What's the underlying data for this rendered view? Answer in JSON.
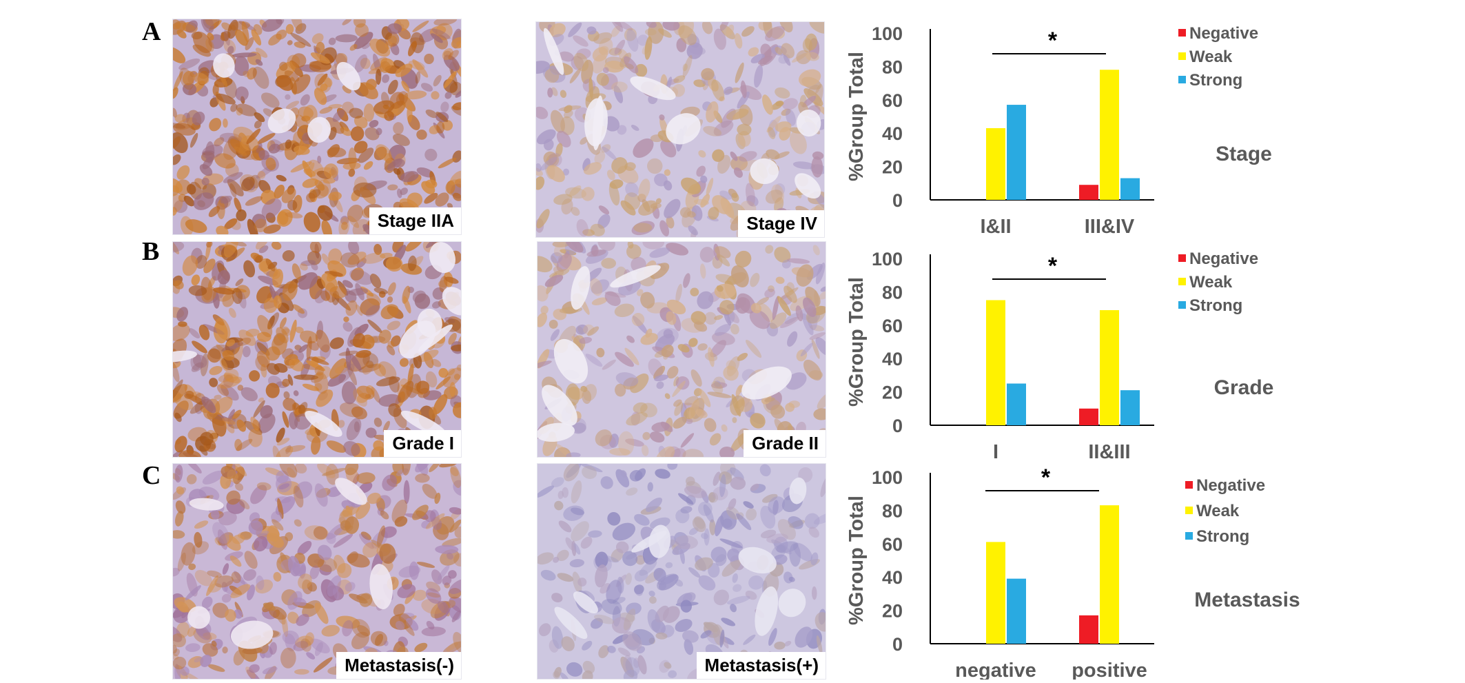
{
  "panels": [
    {
      "letter": "A",
      "images": [
        {
          "label": "Stage IIA",
          "stain": "strong"
        },
        {
          "label": "Stage IV",
          "stain": "weak"
        }
      ]
    },
    {
      "letter": "B",
      "images": [
        {
          "label": "Grade I",
          "stain": "strong"
        },
        {
          "label": "Grade II",
          "stain": "weak"
        }
      ]
    },
    {
      "letter": "C",
      "images": [
        {
          "label": "Metastasis(-)",
          "stain": "medium"
        },
        {
          "label": "Metastasis(+)",
          "stain": "faint"
        }
      ]
    }
  ],
  "colors": {
    "Negative": "#ee1c25",
    "Weak": "#fff200",
    "Strong": "#29aae1"
  },
  "chart_data": [
    {
      "type": "bar",
      "title": "Stage",
      "ylabel": "%Group Total",
      "ylim": [
        0,
        100
      ],
      "yticks": [
        0,
        20,
        40,
        60,
        80,
        100
      ],
      "categories": [
        "I&II",
        "III&IV"
      ],
      "series": [
        {
          "name": "Negative",
          "values": [
            0,
            9
          ]
        },
        {
          "name": "Weak",
          "values": [
            43,
            78
          ]
        },
        {
          "name": "Strong",
          "values": [
            57,
            13
          ]
        }
      ],
      "significance": {
        "pair": [
          0,
          1
        ],
        "label": "*"
      },
      "legend": "top-right"
    },
    {
      "type": "bar",
      "title": "Grade",
      "ylabel": "%Group Total",
      "ylim": [
        0,
        100
      ],
      "yticks": [
        0,
        20,
        40,
        60,
        80,
        100
      ],
      "categories": [
        "I",
        "II&III"
      ],
      "series": [
        {
          "name": "Negative",
          "values": [
            0,
            10
          ]
        },
        {
          "name": "Weak",
          "values": [
            75,
            69
          ]
        },
        {
          "name": "Strong",
          "values": [
            25,
            21
          ]
        }
      ],
      "significance": {
        "pair": [
          0,
          1
        ],
        "label": "*"
      },
      "legend": "top-right"
    },
    {
      "type": "bar",
      "title": "Metastasis",
      "ylabel": "%Group Total",
      "ylim": [
        0,
        100
      ],
      "yticks": [
        0,
        20,
        40,
        60,
        80,
        100
      ],
      "categories": [
        "negative",
        "positive"
      ],
      "series": [
        {
          "name": "Negative",
          "values": [
            0,
            17
          ]
        },
        {
          "name": "Weak",
          "values": [
            61,
            83
          ]
        },
        {
          "name": "Strong",
          "values": [
            39,
            0
          ]
        }
      ],
      "significance": {
        "pair": [
          0,
          1
        ],
        "label": "*"
      },
      "legend": "top-right"
    }
  ]
}
